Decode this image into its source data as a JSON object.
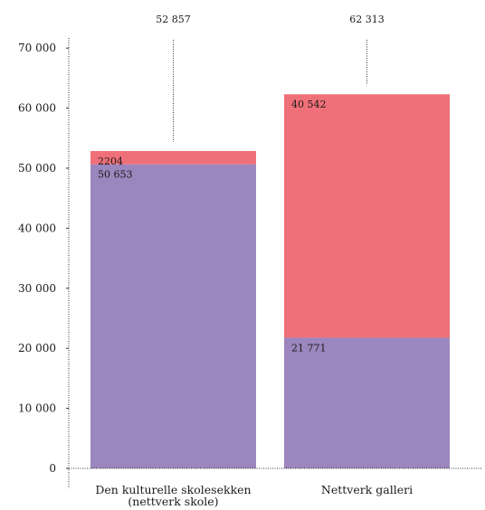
{
  "chart_data": {
    "type": "bar",
    "stacked": true,
    "categories": [
      [
        "Den kulturelle skolesekken",
        "(nettverk skole)"
      ],
      [
        "Nettverk galleri"
      ]
    ],
    "series": [
      {
        "color": "#9b86bd",
        "values": [
          50653,
          21771
        ],
        "labels": [
          "50 653",
          "21 771"
        ]
      },
      {
        "color": "#f07079",
        "values": [
          2204,
          40542
        ],
        "labels": [
          "2204",
          "40 542"
        ]
      }
    ],
    "callouts": [
      "52 857",
      "62 313"
    ],
    "ylim": [
      0,
      75000
    ],
    "yticks": [
      0,
      10000,
      20000,
      30000,
      40000,
      50000,
      60000,
      70000
    ],
    "ytick_labels": [
      "0",
      "10 000",
      "20 000",
      "30 000",
      "40 000",
      "50 000",
      "60 000",
      "70 000"
    ],
    "grid": false
  }
}
